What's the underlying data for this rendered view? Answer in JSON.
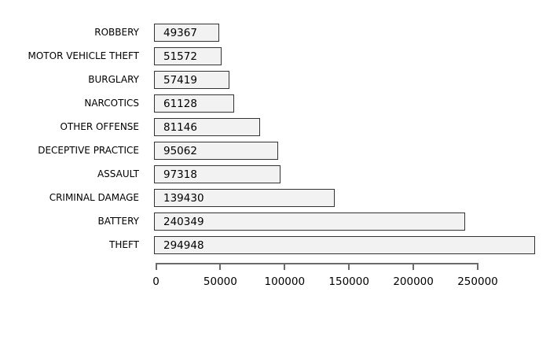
{
  "chart_data": {
    "type": "bar",
    "orientation": "horizontal",
    "title": "",
    "xlabel": "",
    "ylabel": "",
    "grid": false,
    "legend": false,
    "categories": [
      "ROBBERY",
      "MOTOR VEHICLE THEFT",
      "BURGLARY",
      "NARCOTICS",
      "OTHER OFFENSE",
      "DECEPTIVE PRACTICE",
      "ASSAULT",
      "CRIMINAL DAMAGE",
      "BATTERY",
      "THEFT"
    ],
    "values": [
      49367,
      51572,
      57419,
      61128,
      81146,
      95062,
      97318,
      139430,
      240349,
      294948
    ],
    "bar_value_labels": [
      "49367",
      "51572",
      "57419",
      "61128",
      "81146",
      "95062",
      "97318",
      "139430",
      "240349",
      "294948"
    ],
    "x_axis": {
      "tick_values": [
        0,
        50000,
        100000,
        150000,
        200000,
        250000
      ],
      "tick_labels": [
        "0",
        "50000",
        "100000",
        "150000",
        "200000",
        "250000"
      ],
      "range": [
        0,
        300000
      ]
    },
    "colors": {
      "background": "#ffffff",
      "bar_fill": "#f2f2f2",
      "bar_border": "#333333",
      "axis_line": "#6b6b6b",
      "text": "#000000"
    }
  }
}
